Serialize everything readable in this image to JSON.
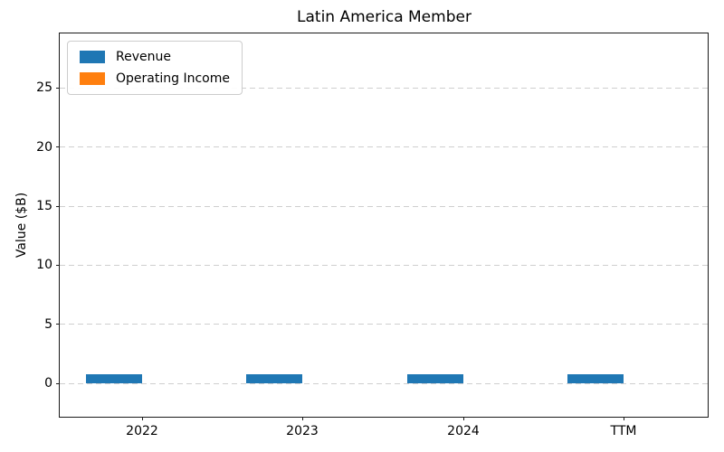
{
  "figure": {
    "background": "#ffffff",
    "text_color": "#000000",
    "grid_color": "#cfcfcf",
    "spine_color": "#1a1a1a"
  },
  "chart_data": {
    "type": "bar",
    "title": "Latin America Member",
    "xlabel": "",
    "ylabel": "Value ($B)",
    "categories": [
      "2022",
      "2023",
      "2024",
      "TTM"
    ],
    "series": [
      {
        "name": "Revenue",
        "color": "#1f77b4",
        "values": [
          0.8,
          0.8,
          0.8,
          0.8
        ]
      },
      {
        "name": "Operating Income",
        "color": "#ff7f0e",
        "values": [
          0.0,
          0.0,
          0.0,
          0.0
        ]
      }
    ],
    "yticks": [
      0,
      5,
      10,
      15,
      20,
      25
    ],
    "ylim": [
      -2.8,
      29.6
    ],
    "grid": "horizontal-dashed",
    "legend_position": "upper-left",
    "bar_group": "grouped"
  }
}
